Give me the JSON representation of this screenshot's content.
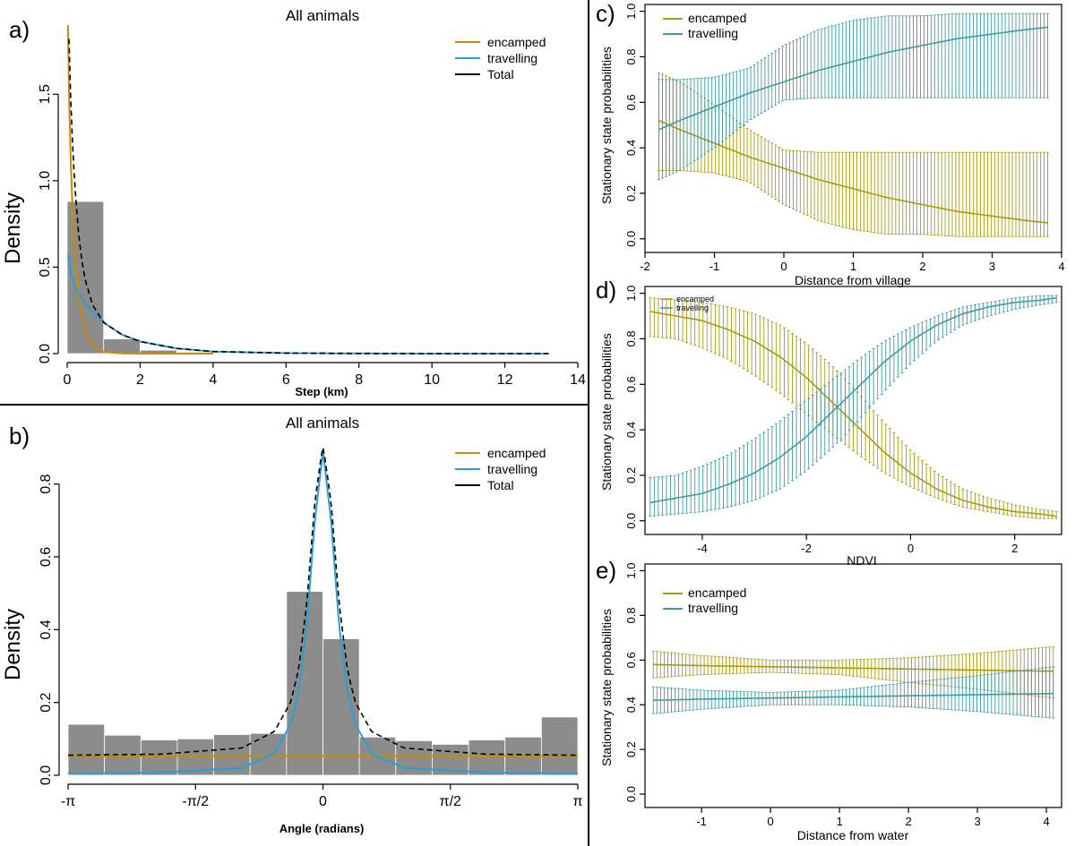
{
  "panels": {
    "a": {
      "letter": "a)",
      "title": "All animals",
      "xlabel": "Step (km)",
      "ylabel": "Density",
      "xticks": [
        "0",
        "2",
        "4",
        "6",
        "8",
        "10",
        "12",
        "14"
      ],
      "yticks": [
        "0.0",
        "0.5",
        "1.0",
        "1.5"
      ],
      "legend": [
        "encamped",
        "travelling",
        "Total"
      ]
    },
    "b": {
      "letter": "b)",
      "title": "All animals",
      "xlabel": "Angle (radians)",
      "ylabel": "Density",
      "xticks": [
        "-π",
        "-π/2",
        "0",
        "π/2",
        "π"
      ],
      "yticks": [
        "0.0",
        "0.2",
        "0.4",
        "0.6",
        "0.8"
      ],
      "legend": [
        "encamped",
        "travelling",
        "Total"
      ]
    },
    "c": {
      "letter": "c)",
      "xlabel": "Distance from village",
      "ylabel": "Stationary state probabilities",
      "xticks": [
        "-2",
        "-1",
        "0",
        "1",
        "2",
        "3",
        "4"
      ],
      "yticks": [
        "0.0",
        "0.2",
        "0.4",
        "0.6",
        "0.8",
        "1.0"
      ],
      "legend": [
        "encamped",
        "travelling"
      ]
    },
    "d": {
      "letter": "d)",
      "xlabel": "NDVI",
      "ylabel": "Stationary state probabilities",
      "xticks": [
        "-4",
        "-2",
        "0",
        "2"
      ],
      "yticks": [
        "0.0",
        "0.2",
        "0.4",
        "0.6",
        "0.8",
        "1.0"
      ],
      "legend": [
        "encamped",
        "travelling"
      ]
    },
    "e": {
      "letter": "e)",
      "xlabel": "Distance from water",
      "ylabel": "Stationary state probabilities",
      "xticks": [
        "-1",
        "0",
        "1",
        "2",
        "3",
        "4"
      ],
      "yticks": [
        "0.0",
        "0.2",
        "0.4",
        "0.6",
        "0.8",
        "1.0"
      ],
      "legend": [
        "encamped",
        "travelling"
      ]
    }
  },
  "colors": {
    "encamped": "#c98a0a",
    "travelling": "#2a9fd6",
    "encamped_state": "#a99a12",
    "travelling_state": "#3f9aa6",
    "total": "#000000",
    "histogram": "#8c8c8c"
  },
  "chart_data": [
    {
      "id": "a",
      "type": "bar",
      "title": "All animals",
      "xlabel": "Step (km)",
      "ylabel": "Density",
      "xlim": [
        0,
        14
      ],
      "ylim": [
        0,
        1.9
      ],
      "histogram": {
        "bin_edges": [
          0,
          1,
          2,
          3,
          4,
          5,
          6,
          7,
          8,
          9,
          10,
          11,
          12,
          13
        ],
        "densities": [
          0.88,
          0.085,
          0.02,
          0.008,
          0.004,
          0.003,
          0.002,
          0.001,
          0.001,
          0.001,
          0.001,
          0.001,
          0.001
        ]
      },
      "series": [
        {
          "name": "encamped",
          "type": "line",
          "x": [
            0.02,
            0.05,
            0.1,
            0.15,
            0.2,
            0.3,
            0.4,
            0.5,
            0.6,
            0.8,
            1.0,
            1.3,
            1.6,
            2.0,
            3.0,
            4.0
          ],
          "y": [
            1.9,
            1.5,
            1.1,
            0.82,
            0.62,
            0.36,
            0.22,
            0.13,
            0.08,
            0.03,
            0.012,
            0.004,
            0.001,
            0.0,
            0.0,
            0.0
          ]
        },
        {
          "name": "travelling",
          "type": "line",
          "x": [
            0.02,
            0.1,
            0.2,
            0.3,
            0.5,
            0.7,
            1.0,
            1.5,
            2.0,
            3.0,
            4.0,
            6.0,
            8.0,
            10.0,
            13.2
          ],
          "y": [
            0.57,
            0.46,
            0.39,
            0.35,
            0.29,
            0.24,
            0.18,
            0.11,
            0.07,
            0.03,
            0.012,
            0.003,
            0.001,
            0.0,
            0.0
          ]
        },
        {
          "name": "Total",
          "type": "line",
          "dashed": true,
          "x": [
            0.05,
            0.1,
            0.15,
            0.2,
            0.3,
            0.4,
            0.5,
            0.7,
            1.0,
            1.5,
            2.0,
            3.0,
            4.0,
            6.0,
            8.0,
            10.0,
            13.2
          ],
          "y": [
            1.82,
            1.45,
            1.2,
            1.0,
            0.72,
            0.54,
            0.42,
            0.28,
            0.18,
            0.11,
            0.07,
            0.03,
            0.012,
            0.003,
            0.001,
            0.0,
            0.0
          ]
        }
      ]
    },
    {
      "id": "b",
      "type": "bar",
      "title": "All animals",
      "xlabel": "Angle (radians)",
      "ylabel": "Density",
      "xlim": [
        -3.1416,
        3.1416
      ],
      "ylim": [
        0,
        0.9
      ],
      "histogram": {
        "bin_edges": [
          -3.1416,
          -2.6928,
          -2.244,
          -1.7952,
          -1.3464,
          -0.8976,
          -0.4488,
          0,
          0.4488,
          0.8976,
          1.3464,
          1.7952,
          2.244,
          2.6928,
          3.1416
        ],
        "densities": [
          0.14,
          0.11,
          0.097,
          0.1,
          0.112,
          0.115,
          0.505,
          0.375,
          0.105,
          0.095,
          0.085,
          0.097,
          0.105,
          0.16
        ]
      },
      "series": [
        {
          "name": "encamped",
          "type": "line",
          "x": [
            -3.1416,
            3.1416
          ],
          "y": [
            0.053,
            0.053
          ]
        },
        {
          "name": "travelling",
          "type": "line",
          "x": [
            -3.1416,
            -2.0,
            -1.0,
            -0.6,
            -0.4,
            -0.3,
            -0.2,
            -0.1,
            0,
            0.1,
            0.2,
            0.3,
            0.4,
            0.6,
            1.0,
            2.0,
            3.1416
          ],
          "y": [
            0.005,
            0.008,
            0.02,
            0.06,
            0.14,
            0.23,
            0.41,
            0.7,
            0.89,
            0.7,
            0.41,
            0.23,
            0.14,
            0.06,
            0.02,
            0.008,
            0.005
          ]
        },
        {
          "name": "Total",
          "type": "line",
          "dashed": true,
          "x": [
            -3.1416,
            -2.0,
            -1.0,
            -0.6,
            -0.4,
            -0.3,
            -0.2,
            -0.1,
            0,
            0.1,
            0.2,
            0.3,
            0.4,
            0.6,
            1.0,
            2.0,
            3.1416
          ],
          "y": [
            0.055,
            0.058,
            0.075,
            0.12,
            0.2,
            0.29,
            0.47,
            0.75,
            0.91,
            0.75,
            0.47,
            0.29,
            0.2,
            0.12,
            0.075,
            0.058,
            0.055
          ]
        }
      ]
    },
    {
      "id": "c",
      "type": "line",
      "xlabel": "Distance from village",
      "ylabel": "Stationary state probabilities",
      "xlim": [
        -2,
        4
      ],
      "ylim": [
        0,
        1
      ],
      "x": [
        -1.8,
        -1.5,
        -1.0,
        -0.5,
        0,
        0.5,
        1.0,
        1.5,
        2.0,
        2.5,
        3.0,
        3.5,
        3.8
      ],
      "series": [
        {
          "name": "encamped",
          "y": [
            0.52,
            0.48,
            0.42,
            0.36,
            0.31,
            0.26,
            0.22,
            0.18,
            0.15,
            0.12,
            0.1,
            0.08,
            0.07
          ],
          "lower": [
            0.3,
            0.3,
            0.29,
            0.25,
            0.15,
            0.08,
            0.04,
            0.02,
            0.02,
            0.01,
            0.01,
            0.01,
            0.01
          ],
          "upper": [
            0.73,
            0.69,
            0.59,
            0.48,
            0.39,
            0.38,
            0.38,
            0.38,
            0.38,
            0.38,
            0.38,
            0.38,
            0.38
          ]
        },
        {
          "name": "travelling",
          "y": [
            0.48,
            0.52,
            0.58,
            0.64,
            0.69,
            0.74,
            0.78,
            0.82,
            0.85,
            0.88,
            0.9,
            0.92,
            0.93
          ],
          "lower": [
            0.26,
            0.3,
            0.4,
            0.52,
            0.61,
            0.62,
            0.62,
            0.62,
            0.62,
            0.62,
            0.62,
            0.62,
            0.62
          ],
          "upper": [
            0.7,
            0.7,
            0.71,
            0.75,
            0.85,
            0.92,
            0.96,
            0.98,
            0.98,
            0.99,
            0.99,
            0.99,
            0.99
          ]
        }
      ]
    },
    {
      "id": "d",
      "type": "line",
      "xlabel": "NDVI",
      "ylabel": "Stationary state probabilities",
      "xlim": [
        -5,
        2.8
      ],
      "ylim": [
        0,
        1
      ],
      "x": [
        -5.0,
        -4.5,
        -4.0,
        -3.5,
        -3.0,
        -2.5,
        -2.0,
        -1.5,
        -1.0,
        -0.5,
        0,
        0.5,
        1.0,
        1.5,
        2.0,
        2.5,
        2.8
      ],
      "series": [
        {
          "name": "encamped",
          "y": [
            0.92,
            0.9,
            0.88,
            0.84,
            0.79,
            0.72,
            0.63,
            0.52,
            0.41,
            0.3,
            0.21,
            0.14,
            0.09,
            0.06,
            0.04,
            0.03,
            0.02
          ],
          "lower": [
            0.81,
            0.8,
            0.76,
            0.71,
            0.64,
            0.56,
            0.47,
            0.38,
            0.29,
            0.21,
            0.15,
            0.1,
            0.06,
            0.04,
            0.02,
            0.01,
            0.01
          ],
          "upper": [
            0.98,
            0.97,
            0.96,
            0.94,
            0.91,
            0.86,
            0.78,
            0.68,
            0.56,
            0.43,
            0.31,
            0.21,
            0.14,
            0.1,
            0.07,
            0.05,
            0.04
          ]
        },
        {
          "name": "travelling",
          "y": [
            0.08,
            0.1,
            0.12,
            0.16,
            0.21,
            0.28,
            0.37,
            0.48,
            0.59,
            0.7,
            0.79,
            0.86,
            0.91,
            0.94,
            0.96,
            0.97,
            0.98
          ],
          "lower": [
            0.02,
            0.03,
            0.04,
            0.06,
            0.09,
            0.14,
            0.22,
            0.32,
            0.44,
            0.57,
            0.69,
            0.79,
            0.86,
            0.9,
            0.93,
            0.95,
            0.96
          ],
          "upper": [
            0.19,
            0.2,
            0.24,
            0.29,
            0.36,
            0.44,
            0.53,
            0.62,
            0.71,
            0.79,
            0.85,
            0.9,
            0.94,
            0.96,
            0.98,
            0.99,
            0.99
          ]
        }
      ]
    },
    {
      "id": "e",
      "type": "line",
      "xlabel": "Distance from water",
      "ylabel": "Stationary state probabilities",
      "xlim": [
        -1.8,
        4.2
      ],
      "ylim": [
        0,
        1
      ],
      "x": [
        -1.7,
        -1.0,
        0,
        1.0,
        2.0,
        3.0,
        4.1
      ],
      "series": [
        {
          "name": "encamped",
          "y": [
            0.58,
            0.575,
            0.57,
            0.565,
            0.56,
            0.555,
            0.55
          ],
          "lower": [
            0.52,
            0.535,
            0.545,
            0.535,
            0.5,
            0.47,
            0.43
          ],
          "upper": [
            0.64,
            0.62,
            0.6,
            0.6,
            0.61,
            0.63,
            0.66
          ]
        },
        {
          "name": "travelling",
          "y": [
            0.42,
            0.425,
            0.43,
            0.435,
            0.44,
            0.445,
            0.45
          ],
          "lower": [
            0.36,
            0.38,
            0.4,
            0.4,
            0.39,
            0.37,
            0.34
          ],
          "upper": [
            0.48,
            0.465,
            0.455,
            0.465,
            0.5,
            0.53,
            0.57
          ]
        }
      ]
    }
  ]
}
